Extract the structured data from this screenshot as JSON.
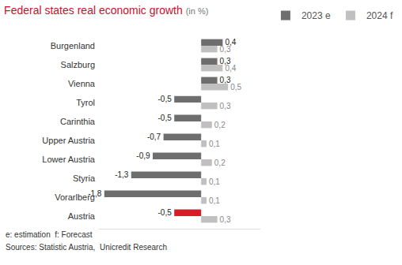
{
  "chart_data": {
    "type": "bar",
    "orientation": "horizontal",
    "title": "Federal states real economic growth",
    "subtitle": "(in %)",
    "categories": [
      "Burgenland",
      "Salzburg",
      "Vienna",
      "Tyrol",
      "Carinthia",
      "Upper Austria",
      "Lower Austria",
      "Styria",
      "Vorarlberg",
      "Austria"
    ],
    "series": [
      {
        "name": "2023 e",
        "color": "#6e6e6e",
        "colors": [
          "#6e6e6e",
          "#6e6e6e",
          "#6e6e6e",
          "#6e6e6e",
          "#6e6e6e",
          "#6e6e6e",
          "#6e6e6e",
          "#6e6e6e",
          "#6e6e6e",
          "#d71e28"
        ],
        "values": [
          0.4,
          0.3,
          0.3,
          -0.5,
          -0.5,
          -0.7,
          -0.9,
          -1.3,
          -1.8,
          -0.5
        ],
        "value_labels": [
          "0,4",
          "0,3",
          "0,3",
          "-0,5",
          "-0,5",
          "-0,7",
          "-0,9",
          "-1,3",
          "-1,8",
          "-0,5"
        ]
      },
      {
        "name": "2024 f",
        "color": "#c0c0c0",
        "values": [
          0.3,
          0.4,
          0.5,
          0.3,
          0.2,
          0.1,
          0.2,
          0.1,
          0.1,
          0.3
        ],
        "value_labels": [
          "0,3",
          "0,4",
          "0,5",
          "0,3",
          "0,2",
          "0,1",
          "0,2",
          "0,1",
          "0,1",
          "0,3"
        ]
      }
    ],
    "xlim": [
      -1.9,
      1.1
    ],
    "xticks": [],
    "grid": false,
    "legend": "top right",
    "data_labels": true,
    "tick_labels": "y",
    "annotations": [
      "e: estimation  f: Forecast",
      "Sources: Statistic Austria,  Unicredit Research"
    ]
  }
}
